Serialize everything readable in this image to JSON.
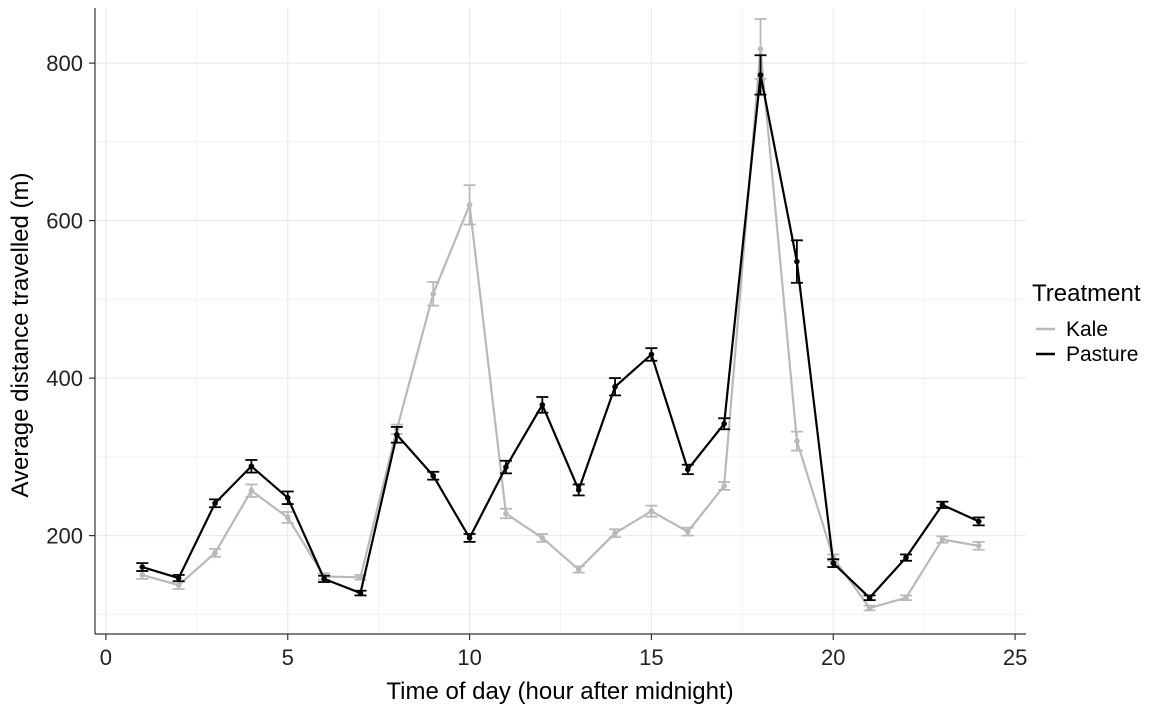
{
  "chart_data": {
    "type": "line",
    "title": "",
    "xlabel": "Time of day (hour after midnight)",
    "ylabel": "Average distance travelled (m)",
    "xlim": [
      -0.3,
      25.3
    ],
    "ylim": [
      75,
      870
    ],
    "x_ticks": [
      0,
      5,
      10,
      15,
      20,
      25
    ],
    "y_ticks": [
      200,
      400,
      600,
      800
    ],
    "x_minor_grid": [
      2.5,
      7.5,
      12.5,
      17.5,
      22.5
    ],
    "y_minor_grid": [
      100,
      300,
      500,
      700
    ],
    "grid": true,
    "error_bars": true,
    "legend": {
      "title": "Treatment",
      "position": "right"
    },
    "series": [
      {
        "name": "Kale",
        "color": "#b9b9b9",
        "x": [
          1,
          2,
          3,
          4,
          5,
          6,
          7,
          8,
          9,
          10,
          11,
          12,
          13,
          14,
          15,
          16,
          17,
          18,
          19,
          20,
          21,
          22,
          23,
          24
        ],
        "y": [
          150,
          137,
          178,
          257,
          223,
          148,
          147,
          335,
          507,
          620,
          228,
          197,
          157,
          203,
          231,
          205,
          263,
          818,
          320,
          172,
          108,
          121,
          195,
          187
        ],
        "err": [
          5,
          5,
          5,
          8,
          7,
          4,
          3,
          6,
          15,
          25,
          6,
          5,
          4,
          5,
          7,
          5,
          5,
          38,
          12,
          4,
          3,
          3,
          4,
          5
        ]
      },
      {
        "name": "Pasture",
        "color": "#000000",
        "x": [
          1,
          2,
          3,
          4,
          5,
          6,
          7,
          8,
          9,
          10,
          11,
          12,
          13,
          14,
          15,
          16,
          17,
          18,
          19,
          20,
          21,
          22,
          23,
          24
        ],
        "y": [
          160,
          146,
          241,
          288,
          248,
          145,
          127,
          328,
          276,
          197,
          287,
          366,
          258,
          389,
          430,
          284,
          342,
          785,
          548,
          165,
          121,
          172,
          239,
          218
        ],
        "err": [
          5,
          4,
          5,
          8,
          8,
          4,
          3,
          10,
          5,
          5,
          8,
          10,
          7,
          11,
          8,
          6,
          7,
          25,
          27,
          5,
          3,
          4,
          4,
          5
        ]
      }
    ]
  }
}
